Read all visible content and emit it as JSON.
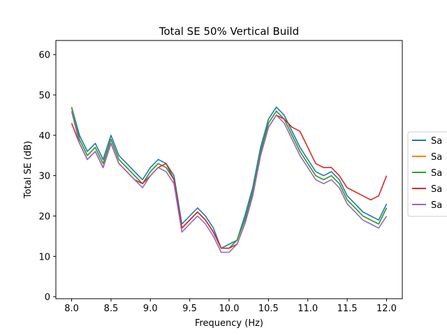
{
  "chart_data": {
    "type": "line",
    "title": "Total SE 50% Vertical Build",
    "xlabel": "Frequency (Hz)",
    "ylabel": "Total SE (dB)",
    "xlim": [
      7.8,
      12.2
    ],
    "ylim": [
      -0.5,
      63.5
    ],
    "xticks": [
      "8.0",
      "8.5",
      "9.0",
      "9.5",
      "10.0",
      "10.5",
      "11.0",
      "11.5",
      "12.0"
    ],
    "xtick_values": [
      8.0,
      8.5,
      9.0,
      9.5,
      10.0,
      10.5,
      11.0,
      11.5,
      12.0
    ],
    "yticks": [
      "0",
      "10",
      "20",
      "30",
      "40",
      "50",
      "60"
    ],
    "ytick_values": [
      0,
      10,
      20,
      30,
      40,
      50,
      60
    ],
    "grid": false,
    "legend_position": "right, clipped at the figure edge",
    "colors": [
      "#1f77b4",
      "#ff7f0e",
      "#2ca02c",
      "#d62728",
      "#9467bd"
    ],
    "x": [
      8.0,
      8.1,
      8.2,
      8.3,
      8.4,
      8.5,
      8.6,
      8.7,
      8.8,
      8.9,
      9.0,
      9.1,
      9.2,
      9.3,
      9.4,
      9.5,
      9.6,
      9.7,
      9.8,
      9.9,
      10.0,
      10.1,
      10.2,
      10.3,
      10.4,
      10.5,
      10.6,
      10.7,
      10.8,
      10.9,
      11.0,
      11.1,
      11.2,
      11.3,
      11.4,
      11.5,
      11.6,
      11.7,
      11.8,
      11.9,
      12.0
    ],
    "series": [
      {
        "name": "Sa",
        "values": [
          47,
          40,
          36,
          38,
          34,
          40,
          35,
          33,
          31,
          29,
          32,
          34,
          33,
          30,
          18,
          20,
          22,
          20,
          17,
          12,
          13,
          14,
          20,
          27,
          37,
          44,
          47,
          45,
          41,
          37,
          34,
          31,
          30,
          31,
          29,
          25,
          23,
          21,
          20,
          19,
          23
        ]
      },
      {
        "name": "Sa",
        "values": [
          47,
          39,
          35,
          37,
          33,
          39,
          34,
          32,
          30,
          28,
          31,
          33,
          32,
          29,
          17,
          19,
          21,
          19,
          16,
          12,
          12,
          14,
          19,
          26,
          36,
          43,
          46,
          44,
          40,
          36,
          33,
          30,
          29,
          30,
          28,
          24,
          22,
          20,
          19,
          18,
          22
        ]
      },
      {
        "name": "Sa",
        "values": [
          47,
          39,
          35,
          37,
          33,
          39,
          34,
          32,
          30,
          28,
          31,
          33,
          32,
          29,
          17,
          19,
          21,
          19,
          16,
          12,
          12,
          14,
          19,
          26,
          36,
          43,
          46,
          44,
          40,
          36,
          33,
          30,
          29,
          30,
          28,
          24,
          22,
          20,
          19,
          18,
          22
        ]
      },
      {
        "name": "Sa",
        "values": [
          43,
          38,
          34,
          36,
          32,
          38,
          33,
          31,
          29,
          28,
          30,
          32,
          33,
          29,
          17,
          19,
          21,
          19,
          16,
          12,
          12,
          13,
          18,
          25,
          35,
          42,
          45,
          44,
          42,
          41,
          37,
          33,
          32,
          32,
          30,
          27,
          26,
          25,
          24,
          25,
          30
        ]
      },
      {
        "name": "Sa",
        "values": [
          46,
          38,
          34,
          36,
          32,
          38,
          33,
          31,
          29,
          27,
          30,
          32,
          31,
          28,
          16,
          18,
          20,
          18,
          15,
          11,
          11,
          13,
          18,
          25,
          35,
          42,
          45,
          43,
          39,
          35,
          32,
          29,
          28,
          29,
          27,
          23,
          21,
          19,
          18,
          17,
          20
        ]
      }
    ]
  }
}
